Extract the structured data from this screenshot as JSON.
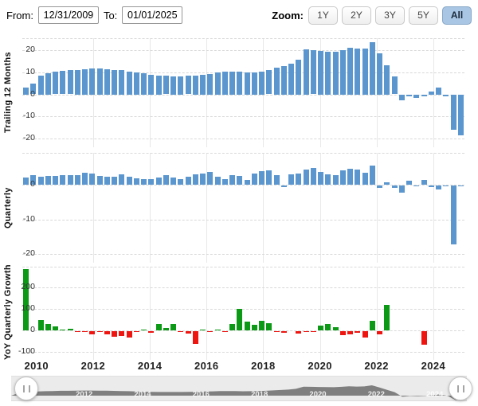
{
  "controls": {
    "from_label": "From:",
    "from_value": "12/31/2009",
    "to_label": "To:",
    "to_value": "01/01/2025",
    "zoom_label": "Zoom:",
    "zoom_options": [
      "1Y",
      "2Y",
      "3Y",
      "5Y",
      "All"
    ],
    "zoom_active": "All"
  },
  "colors": {
    "bar_blue": "#5b97ce",
    "bar_green": "#0c9a16",
    "bar_red": "#ee1511",
    "zoom_active_bg": "#a9c6e4",
    "navigator_area": "#7f7f7f",
    "navigator_track": "#ebebeb"
  },
  "x_axis": {
    "tick_years": [
      2010,
      2012,
      2014,
      2016,
      2018,
      2020,
      2022,
      2024
    ],
    "time_start": 2009.5,
    "time_end": 2025.1
  },
  "chart_data": [
    {
      "type": "bar",
      "title": "Trailing 12 Months",
      "ylabel": "Trailing 12 Months",
      "x_start": "2010-Q1",
      "x_freq": "quarterly",
      "yticks": [
        20,
        10,
        0,
        -10,
        -20
      ],
      "ylim": [
        -24,
        25.5
      ],
      "bar_color": "#5b97ce",
      "values": [
        3.2,
        5.0,
        8.5,
        9.6,
        10.2,
        10.6,
        11.0,
        11.1,
        11.4,
        11.7,
        11.7,
        11.4,
        11.2,
        10.9,
        10.5,
        10.1,
        9.6,
        9.0,
        8.6,
        8.4,
        8.3,
        8.3,
        8.4,
        8.6,
        9.0,
        9.4,
        9.9,
        10.4,
        10.5,
        10.3,
        10.0,
        10.1,
        10.4,
        11.0,
        12.0,
        13.0,
        13.8,
        15.6,
        20.4,
        20.1,
        19.9,
        19.5,
        19.3,
        20.2,
        21.3,
        20.8,
        21.0,
        23.6,
        18.6,
        13.3,
        8.0,
        -2.5,
        -0.8,
        -1.3,
        -0.8,
        1.4,
        3.0,
        -0.8,
        -16.0,
        -18.5
      ]
    },
    {
      "type": "bar",
      "title": "Quarterly",
      "ylabel": "Quarterly",
      "x_start": "2010-Q1",
      "x_freq": "quarterly",
      "yticks": [
        0,
        -10,
        -20
      ],
      "ylim": [
        -22.5,
        9.2
      ],
      "bar_color": "#5b97ce",
      "values": [
        2.0,
        2.8,
        2.4,
        2.6,
        2.6,
        2.7,
        2.8,
        2.8,
        3.5,
        3.3,
        2.6,
        2.4,
        2.4,
        2.9,
        2.4,
        1.9,
        1.7,
        1.6,
        2.1,
        2.7,
        2.2,
        1.6,
        2.3,
        2.9,
        3.3,
        3.7,
        2.4,
        1.7,
        2.7,
        2.5,
        1.4,
        3.3,
        3.9,
        4.2,
        2.8,
        -0.5,
        2.9,
        3.3,
        4.4,
        4.8,
        3.6,
        3.0,
        2.8,
        4.2,
        4.7,
        4.3,
        3.5,
        5.5,
        -0.8,
        0.7,
        -0.9,
        -2.2,
        1.2,
        -0.4,
        1.5,
        -0.6,
        -1.2,
        -0.3,
        -17.0,
        -0.4
      ]
    },
    {
      "type": "bar",
      "title": "YoY Quarterly Growth",
      "ylabel": "YoY Quarterly Growth",
      "x_start": "2010-Q1",
      "x_freq": "quarterly",
      "yticks": [
        200,
        100,
        0,
        -100
      ],
      "ylim": [
        -137,
        296
      ],
      "positive_color": "#0c9a16",
      "negative_color": "#ee1511",
      "values": [
        285,
        0,
        50,
        28,
        20,
        3,
        8,
        -3,
        -5,
        -18,
        -6,
        -15,
        -28,
        -25,
        -32,
        -6,
        5,
        -8,
        30,
        10,
        28,
        -5,
        -12,
        -60,
        5,
        -6,
        4,
        -3,
        30,
        100,
        40,
        25,
        45,
        32,
        -4,
        -8,
        0,
        -12,
        -5,
        -3,
        22,
        28,
        15,
        -22,
        -18,
        -10,
        -32,
        45,
        -18,
        120,
        0,
        0,
        0,
        0,
        -65,
        0,
        0,
        0,
        0,
        0
      ]
    }
  ],
  "navigator": {
    "ghost_years": [
      2010,
      2012,
      2014,
      2016,
      2018,
      2020,
      2022,
      2024
    ]
  }
}
